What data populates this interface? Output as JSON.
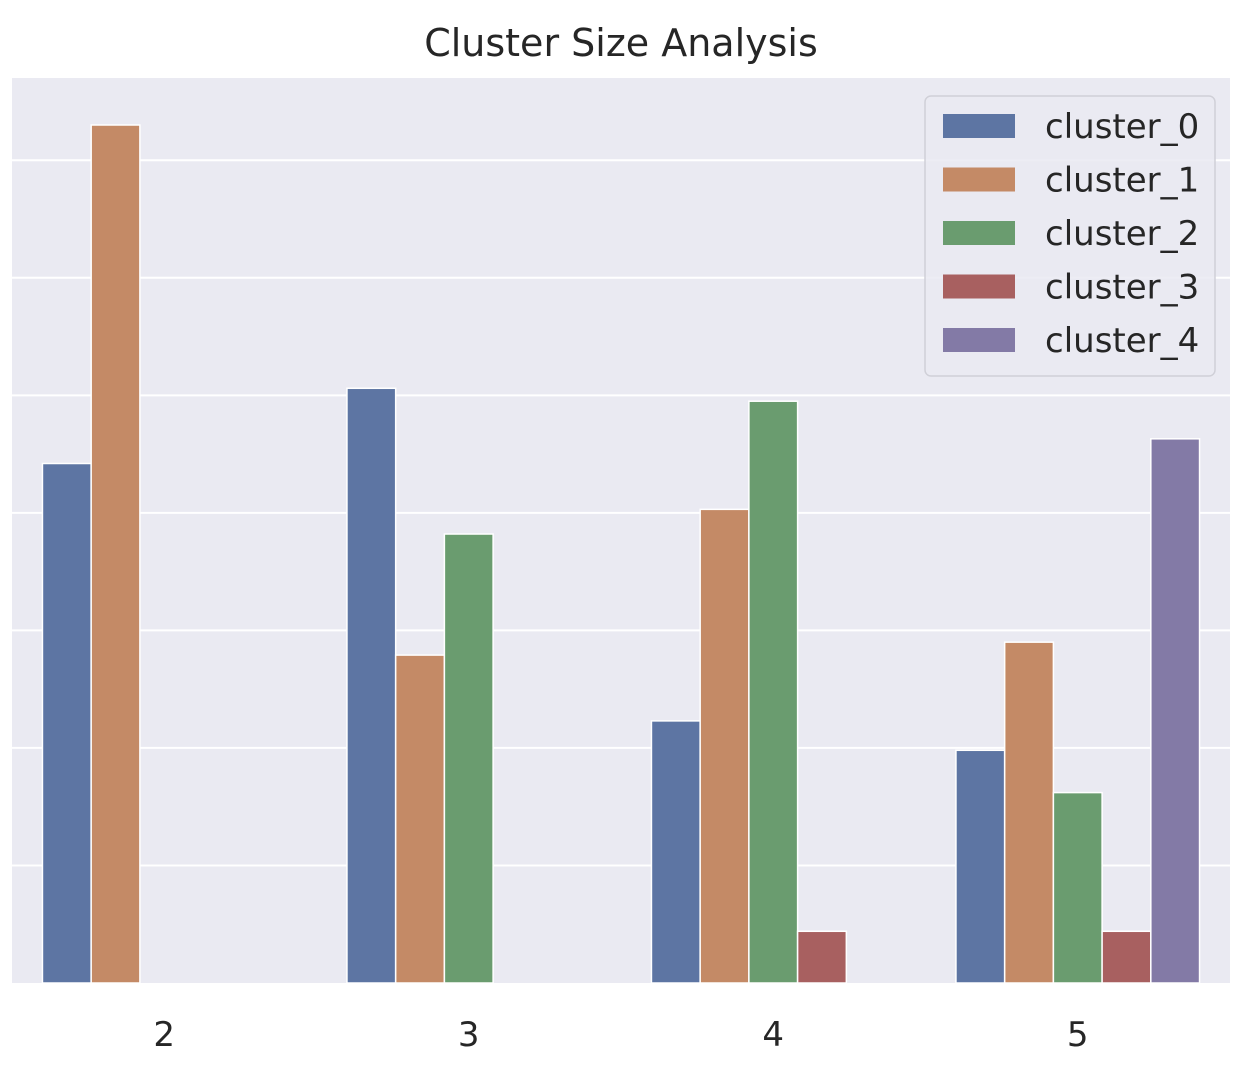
{
  "chart_data": {
    "type": "bar",
    "title": "Cluster Size Analysis",
    "xlabel": "",
    "ylabel": "",
    "categories": [
      "2",
      "3",
      "4",
      "5"
    ],
    "series": [
      {
        "name": "cluster_0",
        "color": "#5d75a3",
        "values": [
          442,
          506,
          223,
          198
        ]
      },
      {
        "name": "cluster_1",
        "color": "#c48a66",
        "values": [
          730,
          279,
          403,
          290
        ]
      },
      {
        "name": "cluster_2",
        "color": "#6a9c6f",
        "values": [
          null,
          382,
          495,
          162
        ]
      },
      {
        "name": "cluster_3",
        "color": "#a86060",
        "values": [
          null,
          null,
          44,
          44
        ]
      },
      {
        "name": "cluster_4",
        "color": "#837aa6",
        "values": [
          null,
          null,
          null,
          463
        ]
      }
    ],
    "ylim": [
      0,
      770
    ],
    "y_ticks_shown": false,
    "grid": true,
    "legend": "top-right",
    "style": {
      "plot_bg": "#eaeaf2",
      "grid_color": "#ffffff"
    }
  }
}
